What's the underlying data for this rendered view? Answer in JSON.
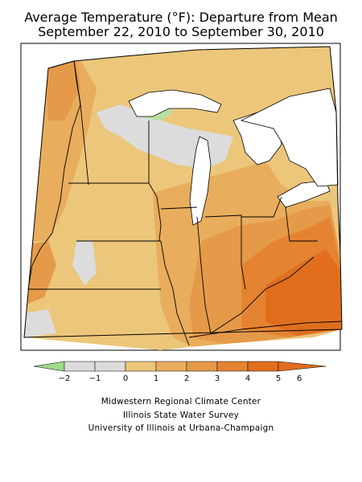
{
  "title": {
    "line1": "Average Temperature (°F): Departure from Mean",
    "line2": "September 22, 2010 to September 30, 2010"
  },
  "legend": {
    "labels": [
      "−2",
      "−1",
      "0",
      "1",
      "2",
      "3",
      "4",
      "5",
      "6"
    ],
    "colors": [
      "#9fd98a",
      "#dcdcdc",
      "#dcdcdc",
      "#ecc67a",
      "#e8ad5d",
      "#e59a49",
      "#e48432",
      "#e16e1d"
    ]
  },
  "colors": {
    "green": "#b6e2a0",
    "gray": "#dcdcdc",
    "c1": "#ecc67a",
    "c2": "#e8ad5d",
    "c3": "#e59a49",
    "c4": "#e48432",
    "c5": "#e16e1d"
  },
  "credits": [
    "Midwestern Regional Climate Center",
    "Illinois State Water Survey",
    "University of Illinois at Urbana-Champaign"
  ]
}
